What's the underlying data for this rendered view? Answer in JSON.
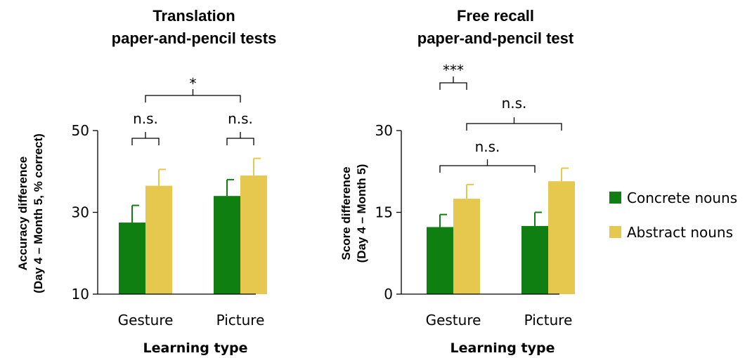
{
  "legend": [
    {
      "label": "Concrete nouns",
      "color": "#0f7f12"
    },
    {
      "label": "Abstract nouns",
      "color": "#e6c84e"
    }
  ],
  "chart_data": [
    {
      "type": "bar",
      "title_lines": [
        "Translation",
        "paper-and-pencil tests"
      ],
      "ylabel_lines": [
        "Accuracy difference",
        "(Day 4 – Month 5, % correct)"
      ],
      "xlabel": "Learning type",
      "categories": [
        "Gesture",
        "Picture"
      ],
      "ylim": [
        10,
        50
      ],
      "yticks": [
        10,
        30,
        50
      ],
      "series": [
        {
          "name": "Concrete nouns",
          "color": "#0f7f12",
          "values": [
            27.5,
            34.0
          ],
          "errors": [
            4.2,
            4.0
          ]
        },
        {
          "name": "Abstract nouns",
          "color": "#e6c84e",
          "values": [
            36.5,
            39.0
          ],
          "errors": [
            4.0,
            4.2
          ]
        }
      ],
      "significance": [
        {
          "label": "n.s.",
          "from": {
            "cat": 0,
            "series": 0
          },
          "to": {
            "cat": 0,
            "series": 1
          }
        },
        {
          "label": "n.s.",
          "from": {
            "cat": 1,
            "series": 0
          },
          "to": {
            "cat": 1,
            "series": 1
          }
        },
        {
          "label": "*",
          "from": {
            "cat": 0,
            "series": 0.5
          },
          "to": {
            "cat": 1,
            "series": 0.5
          }
        }
      ]
    },
    {
      "type": "bar",
      "title_lines": [
        "Free recall",
        "paper-and-pencil test"
      ],
      "ylabel_lines": [
        "Score difference",
        "(Day 4 – Month 5)"
      ],
      "xlabel": "Learning type",
      "categories": [
        "Gesture",
        "Picture"
      ],
      "ylim": [
        0,
        30
      ],
      "yticks": [
        0,
        15,
        30
      ],
      "series": [
        {
          "name": "Concrete nouns",
          "color": "#0f7f12",
          "values": [
            12.3,
            12.5
          ],
          "errors": [
            2.3,
            2.5
          ]
        },
        {
          "name": "Abstract nouns",
          "color": "#e6c84e",
          "values": [
            17.5,
            20.7
          ],
          "errors": [
            2.6,
            2.4
          ]
        }
      ],
      "significance": [
        {
          "label": "n.s.",
          "from": {
            "cat": 0,
            "series": 0
          },
          "to": {
            "cat": 1,
            "series": 0
          }
        },
        {
          "label": "n.s.",
          "from": {
            "cat": 0,
            "series": 1
          },
          "to": {
            "cat": 1,
            "series": 1
          }
        },
        {
          "label": "***",
          "from": {
            "cat": 0,
            "series": 0
          },
          "to": {
            "cat": 0,
            "series": 1
          }
        }
      ]
    }
  ]
}
